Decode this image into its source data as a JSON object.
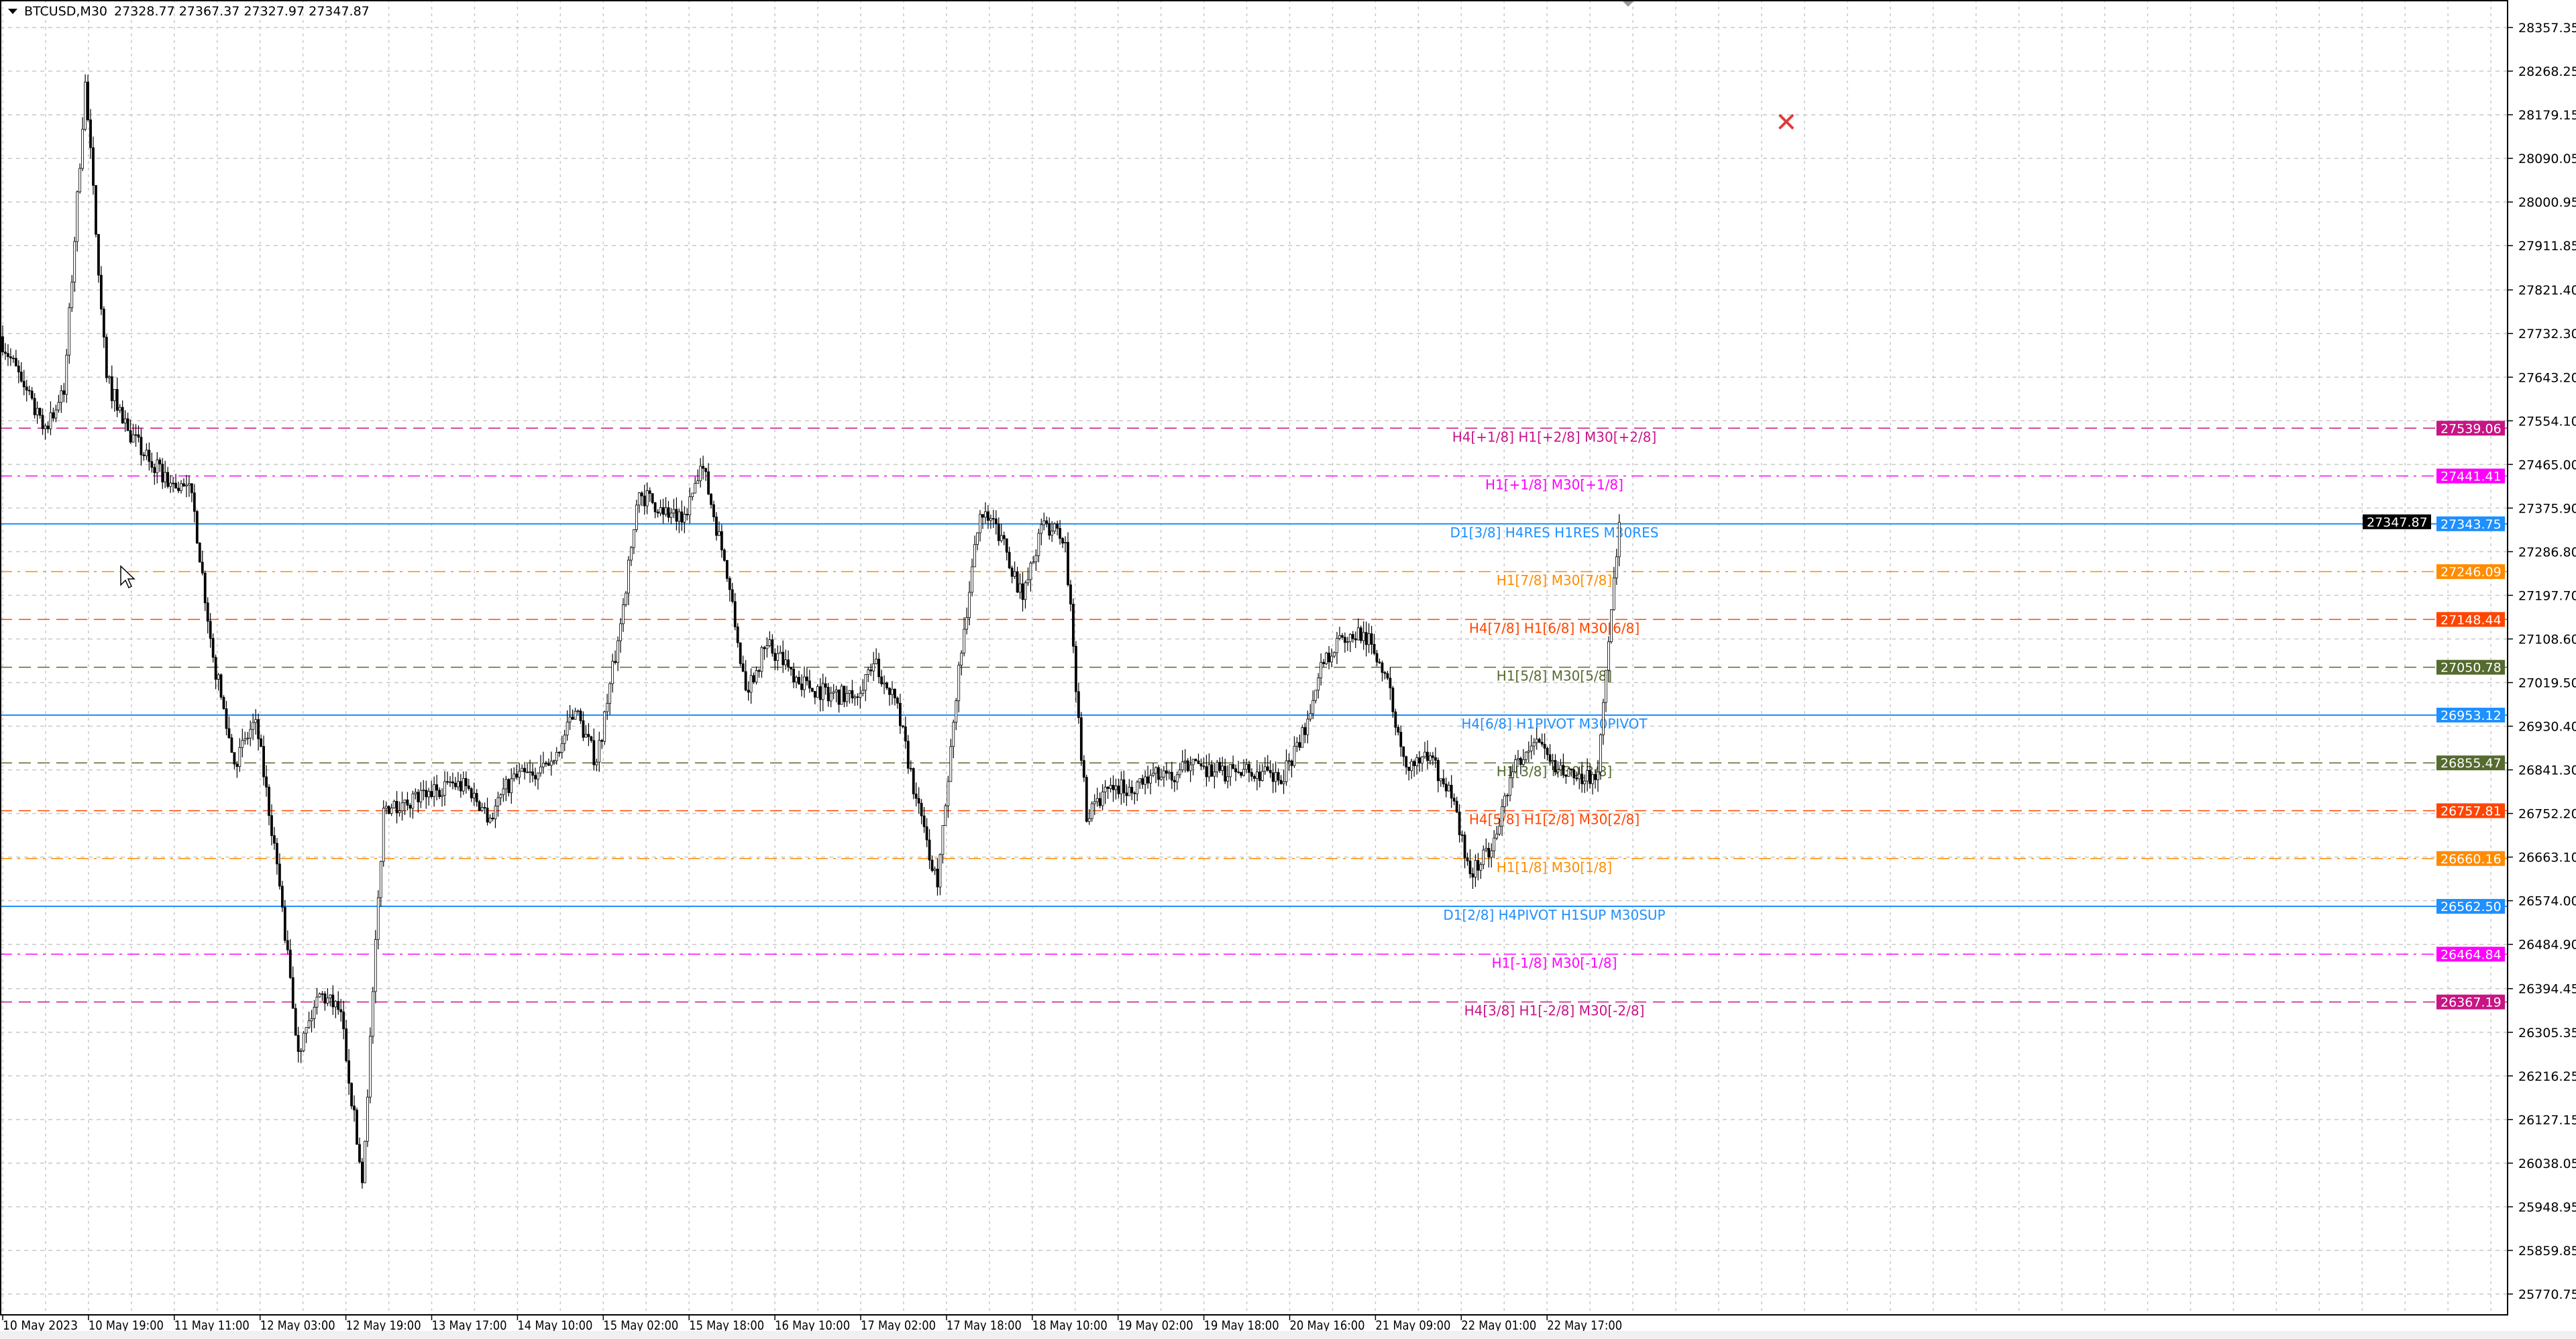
{
  "header": {
    "symbol": "BTCUSD,M30",
    "ohlc": "27328.77 27367.37 27327.97 27347.87"
  },
  "current_price": "27347.87",
  "icons": {
    "close_mark": "red-x-icon",
    "cursor": "mouse-pointer-icon",
    "shift_marker": "triangle-down-icon"
  },
  "chart_data": {
    "type": "candlestick",
    "title": "BTCUSD,M30",
    "timeframe": "M30",
    "grid": true,
    "ylim": [
      25770.75,
      28357.35
    ],
    "y_ticks": [
      "28357.35",
      "28268.25",
      "28179.15",
      "28090.05",
      "28000.95",
      "27911.85",
      "27821.40",
      "27732.30",
      "27643.20",
      "27554.10",
      "27465.00",
      "27375.90",
      "27286.80",
      "27197.70",
      "27108.60",
      "27019.50",
      "26930.40",
      "26841.30",
      "26752.20",
      "26663.10",
      "26574.00",
      "26484.90",
      "26394.45",
      "26305.35",
      "26216.25",
      "26127.15",
      "26038.05",
      "25948.95",
      "25859.85",
      "25770.75"
    ],
    "x_ticks": [
      "10 May 2023",
      "10 May 19:00",
      "11 May 11:00",
      "12 May 03:00",
      "12 May 19:00",
      "13 May 17:00",
      "14 May 10:00",
      "15 May 02:00",
      "15 May 18:00",
      "16 May 10:00",
      "17 May 02:00",
      "17 May 18:00",
      "18 May 10:00",
      "19 May 02:00",
      "19 May 18:00",
      "20 May 16:00",
      "21 May 09:00",
      "22 May 01:00",
      "22 May 17:00"
    ],
    "close_every_4h": [
      27726,
      27635,
      27538,
      27608,
      28246,
      27642,
      27534,
      27471,
      27427,
      27407,
      27071,
      26853,
      26944,
      26649,
      26266,
      26384,
      26347,
      25998,
      26763,
      26780,
      26786,
      26816,
      26803,
      26743,
      26823,
      26830,
      26860,
      26961,
      26857,
      27105,
      27407,
      27377,
      27347,
      27457,
      27269,
      27004,
      27095,
      27051,
      27008,
      26998,
      26988,
      27058,
      26988,
      26783,
      26602,
      27055,
      27363,
      27320,
      27189,
      27350,
      27306,
      26736,
      26803,
      26806,
      26830,
      26820,
      26863,
      26837,
      26837,
      26837,
      26820,
      26887,
      27061,
      27112,
      27122,
      27038,
      26847,
      26860,
      26810,
      26629,
      26676,
      26837,
      26897,
      26837,
      26823,
      26837,
      27347
    ],
    "levels": [
      {
        "price": "27539.06",
        "label": "H4[+1/8] H1[+2/8] M30[+2/8]",
        "color": "#C71585",
        "style": "dash"
      },
      {
        "price": "27441.41",
        "label": "H1[+1/8] M30[+1/8]",
        "color": "#FF00FF",
        "style": "dashdot"
      },
      {
        "price": "27343.75",
        "label": "D1[3/8] H4RES H1RES M30RES",
        "color": "#1E90FF",
        "style": "solid"
      },
      {
        "price": "27246.09",
        "label": "H1[7/8] M30[7/8]",
        "color": "#FF8C00",
        "style": "dashdot"
      },
      {
        "price": "27148.44",
        "label": "H4[7/8] H1[6/8] M30[6/8]",
        "color": "#FF4500",
        "style": "dash"
      },
      {
        "price": "27050.78",
        "label": "H1[5/8] M30[5/8]",
        "color": "#556B2F",
        "style": "dash"
      },
      {
        "price": "26953.12",
        "label": "H4[6/8] H1PIVOT M30PIVOT",
        "color": "#1E90FF",
        "style": "solid"
      },
      {
        "price": "26855.47",
        "label": "H1[3/8] M30[3/8]",
        "color": "#556B2F",
        "style": "dash"
      },
      {
        "price": "26757.81",
        "label": "H4[5/8] H1[2/8] M30[2/8]",
        "color": "#FF4500",
        "style": "dash"
      },
      {
        "price": "26660.16",
        "label": "H1[1/8] M30[1/8]",
        "color": "#FF8C00",
        "style": "dashdot"
      },
      {
        "price": "26562.50",
        "label": "D1[2/8] H4PIVOT H1SUP M30SUP",
        "color": "#1E90FF",
        "style": "solid"
      },
      {
        "price": "26464.84",
        "label": "H1[-1/8] M30[-1/8]",
        "color": "#FF00FF",
        "style": "dashdot"
      },
      {
        "price": "26367.19",
        "label": "H4[3/8] H1[-2/8] M30[-2/8]",
        "color": "#C71585",
        "style": "dash"
      }
    ]
  }
}
